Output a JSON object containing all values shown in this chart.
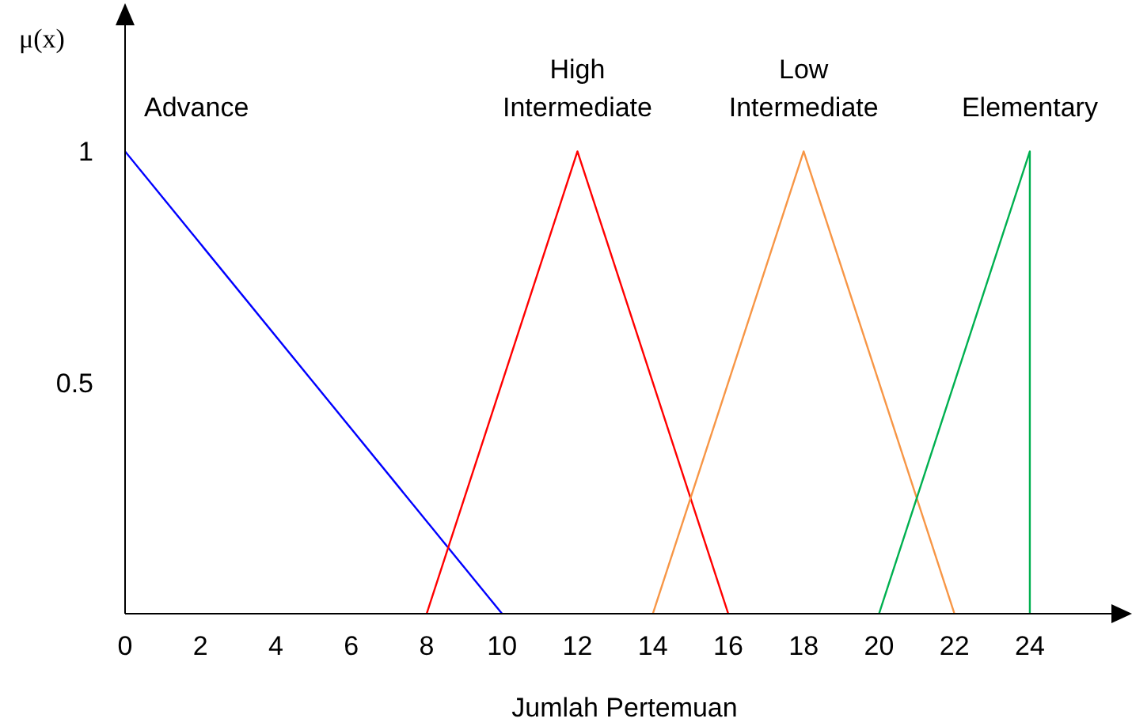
{
  "chart_data": {
    "type": "line",
    "xlabel": "Jumlah Pertemuan",
    "ylabel": "μ(x)",
    "xlim": [
      0,
      26.5
    ],
    "xticks": [
      0,
      2,
      4,
      6,
      8,
      10,
      12,
      14,
      16,
      18,
      20,
      22,
      24
    ],
    "ylim": [
      0,
      1.3
    ],
    "yticks": [
      0.5,
      1
    ],
    "series": [
      {
        "name": "Advance",
        "color": "#0000ff",
        "x": [
          0,
          10
        ],
        "values": [
          1,
          0
        ]
      },
      {
        "name": "High Intermediate",
        "color": "#ff0000",
        "x": [
          8,
          12,
          16
        ],
        "values": [
          0,
          1,
          0
        ]
      },
      {
        "name": "Low Intermediate",
        "color": "#f79646",
        "x": [
          14,
          18,
          22
        ],
        "values": [
          0,
          1,
          0
        ]
      },
      {
        "name": "Elementary",
        "color": "#00b050",
        "x": [
          20,
          24,
          24
        ],
        "values": [
          0,
          1,
          0
        ]
      }
    ],
    "grid": false,
    "legend": false,
    "marker": "none",
    "line_style": "solid"
  }
}
